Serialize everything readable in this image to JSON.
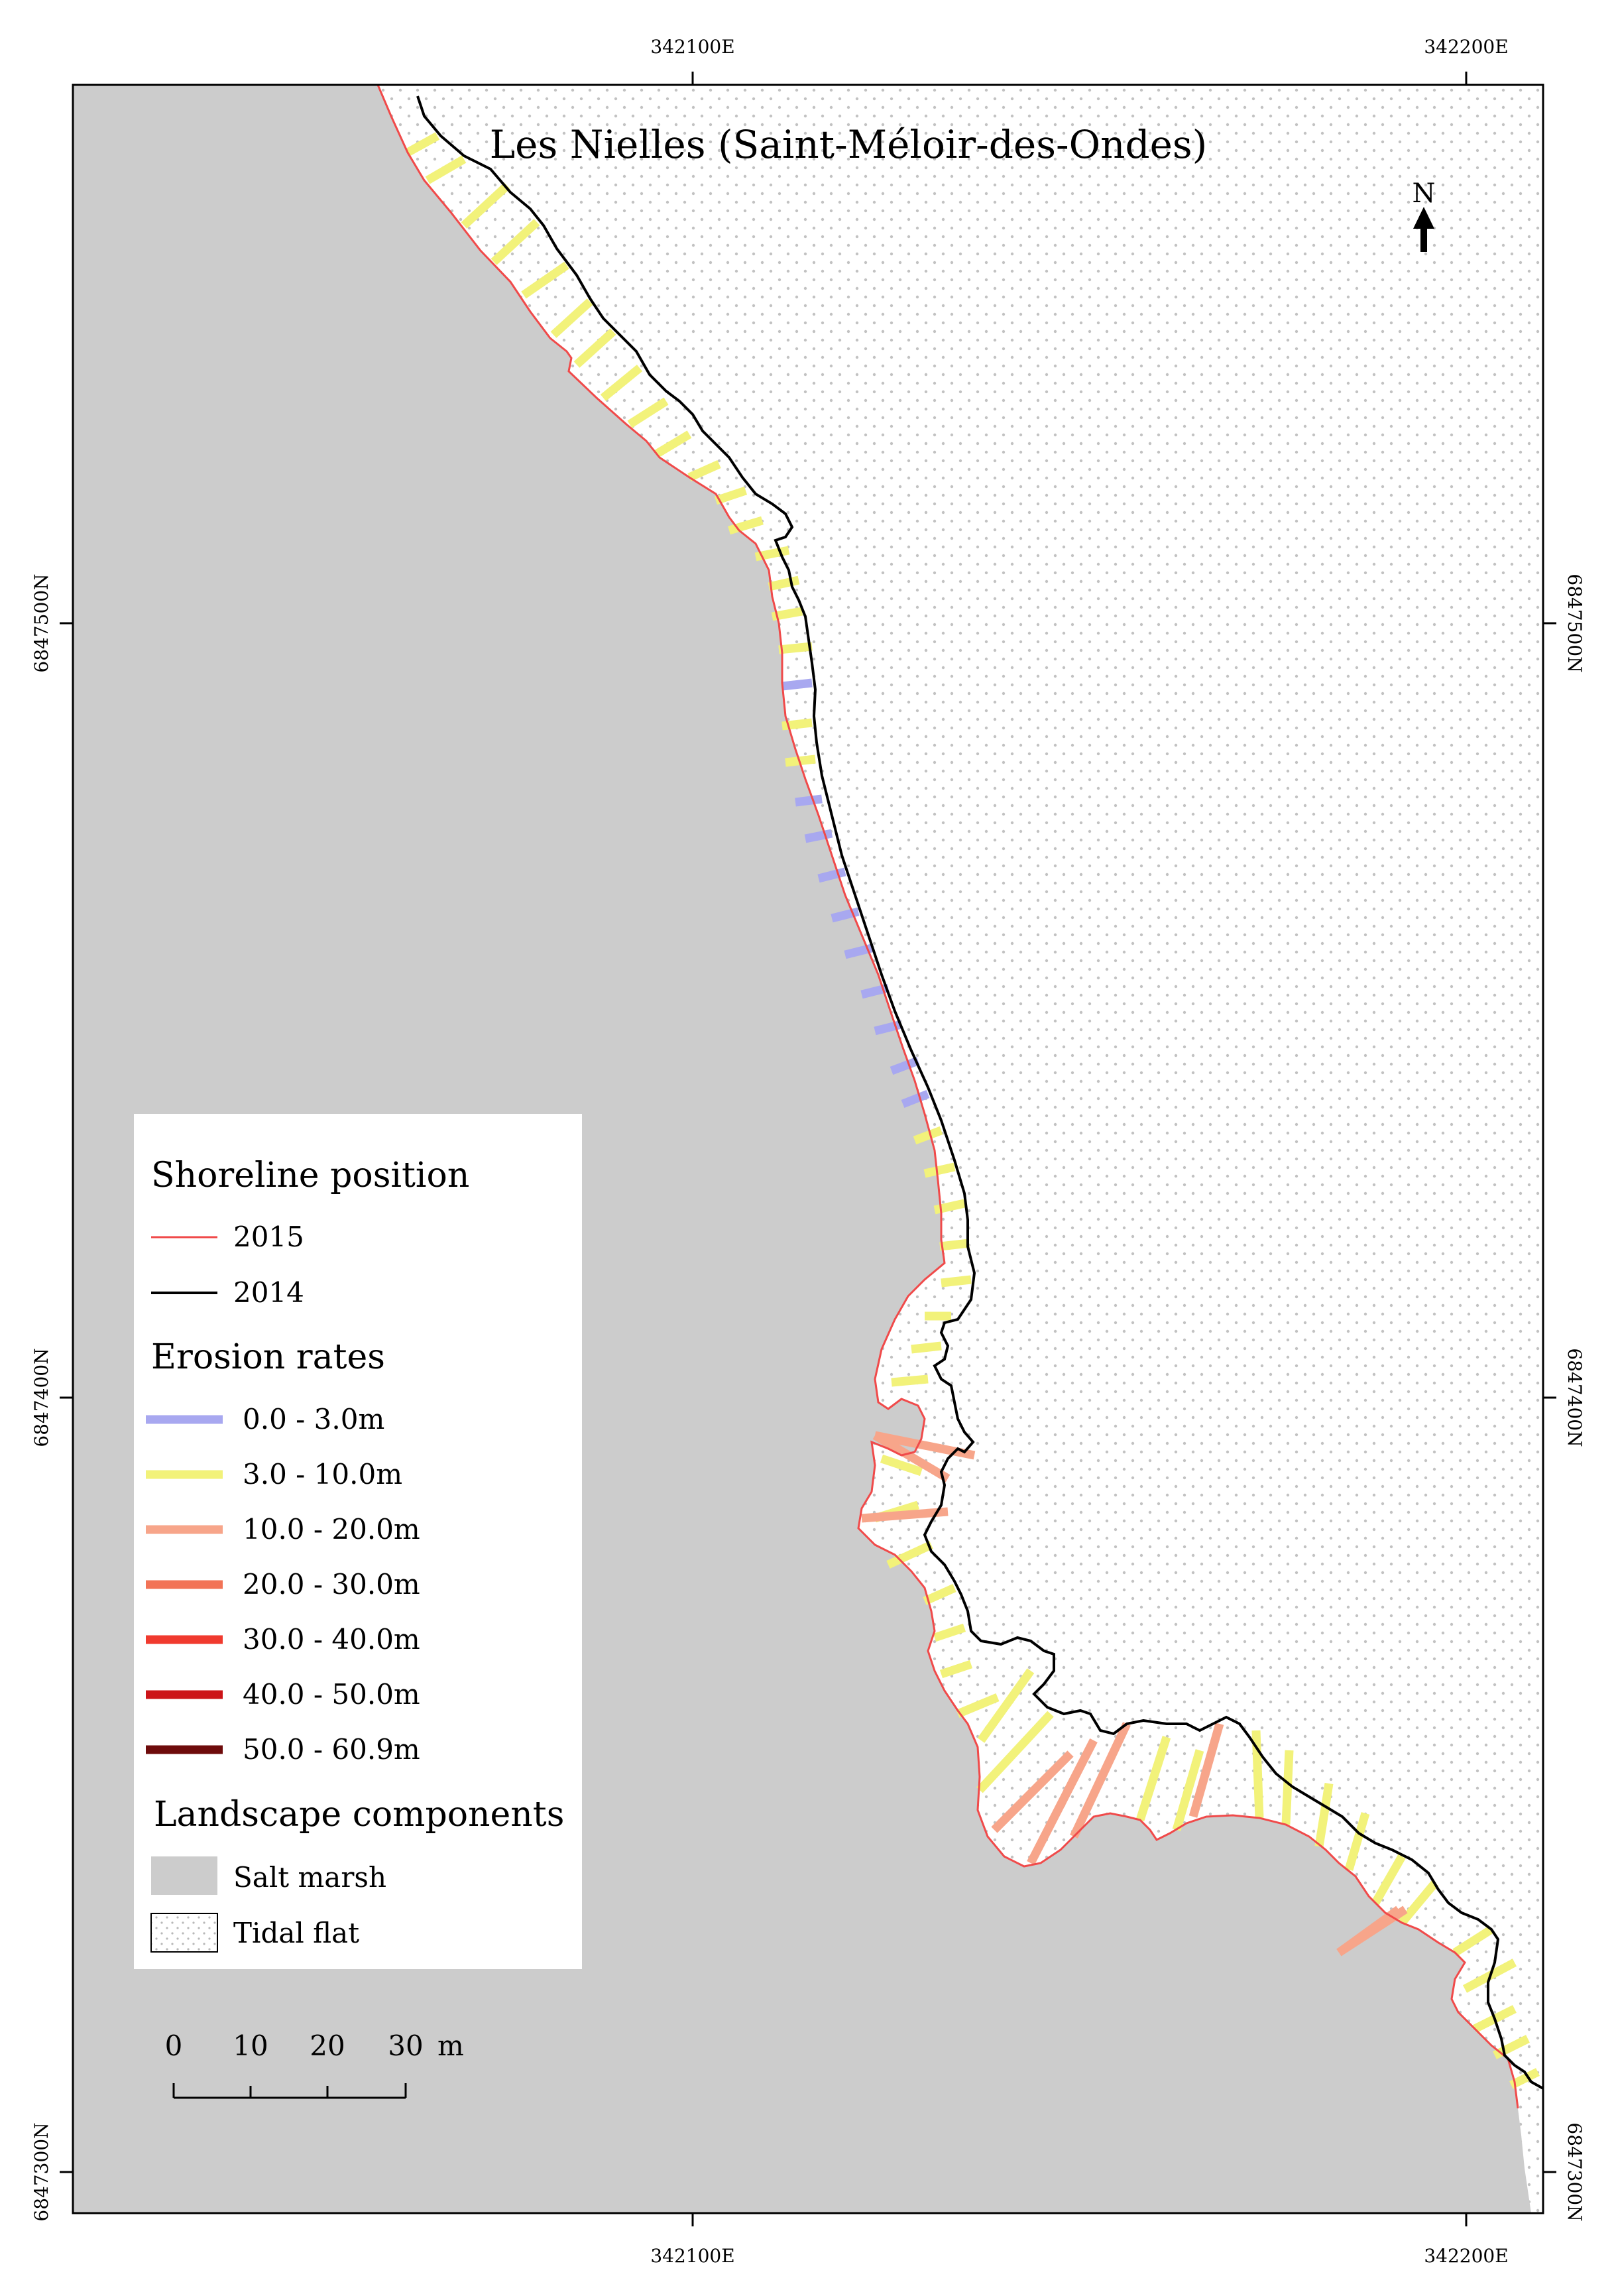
{
  "map": {
    "title": "Les Nielles (Saint-Méloir-des-Ondes)",
    "north_label": "N",
    "grid": {
      "x_ticks": [
        {
          "label": "342100E",
          "easting": 342100
        },
        {
          "label": "342200E",
          "easting": 342200
        }
      ],
      "y_ticks": [
        {
          "label": "6847500N",
          "northing": 6847500
        },
        {
          "label": "6847400N",
          "northing": 6847400
        },
        {
          "label": "6847300N",
          "northing": 6847300
        }
      ]
    },
    "scale_bar": {
      "ticks": [
        "0",
        "10",
        "20",
        "30"
      ],
      "unit": "m"
    }
  },
  "legend": {
    "shoreline_title": "Shoreline position",
    "shoreline_items": [
      {
        "label": "2015",
        "color": "#f04a4a"
      },
      {
        "label": "2014",
        "color": "#000000"
      }
    ],
    "erosion_title": "Erosion rates",
    "erosion_items": [
      {
        "label": "0.0 - 3.0m",
        "color": "#a8a8f0"
      },
      {
        "label": "3.0 - 10.0m",
        "color": "#f2f27a"
      },
      {
        "label": "10.0 - 20.0m",
        "color": "#f7a58a"
      },
      {
        "label": "20.0 - 30.0m",
        "color": "#f27356"
      },
      {
        "label": "30.0 - 40.0m",
        "color": "#f03a2e"
      },
      {
        "label": "40.0 - 50.0m",
        "color": "#cc1418"
      },
      {
        "label": "50.0 - 60.9m",
        "color": "#6e0b0b"
      }
    ],
    "landscape_title": "Landscape components",
    "landscape_items": [
      {
        "label": "Salt marsh",
        "color": "#cccccc"
      },
      {
        "label": "Tidal flat",
        "color": "#f2f2f2"
      }
    ]
  }
}
